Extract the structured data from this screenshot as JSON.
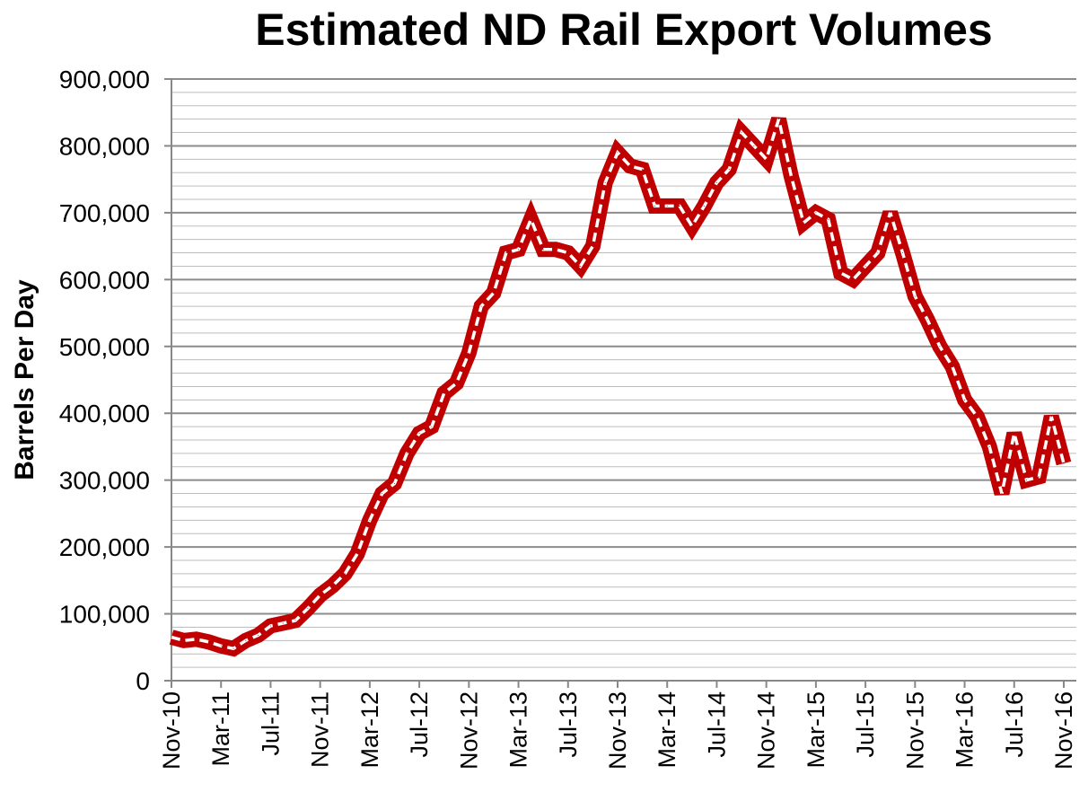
{
  "chart_data": {
    "type": "line",
    "title": "Estimated ND Rail Export Volumes",
    "xlabel": "",
    "ylabel": "Barrels Per Day",
    "ylim": [
      0,
      900000
    ],
    "y_ticks": [
      0,
      100000,
      200000,
      300000,
      400000,
      500000,
      600000,
      700000,
      800000,
      900000
    ],
    "y_tick_labels": [
      "0",
      "100,000",
      "200,000",
      "300,000",
      "400,000",
      "500,000",
      "600,000",
      "700,000",
      "800,000",
      "900,000"
    ],
    "x_tick_labels": [
      "Nov-10",
      "Mar-11",
      "Jul-11",
      "Nov-11",
      "Mar-12",
      "Jul-12",
      "Nov-12",
      "Mar-13",
      "Jul-13",
      "Nov-13",
      "Mar-14",
      "Jul-14",
      "Nov-14",
      "Mar-15",
      "Jul-15",
      "Nov-15",
      "Mar-16",
      "Jul-16",
      "Nov-16"
    ],
    "grid": true,
    "line_color": "#c00000",
    "series": [
      {
        "x": [
          "Nov-10",
          "Dec-10",
          "Jan-11",
          "Feb-11",
          "Mar-11",
          "Apr-11",
          "May-11",
          "Jun-11",
          "Jul-11",
          "Aug-11",
          "Sep-11",
          "Oct-11",
          "Nov-11",
          "Dec-11",
          "Jan-12",
          "Feb-12",
          "Mar-12",
          "Apr-12",
          "May-12",
          "Jun-12",
          "Jul-12",
          "Aug-12",
          "Sep-12",
          "Oct-12",
          "Nov-12",
          "Dec-12",
          "Jan-13",
          "Feb-13",
          "Mar-13",
          "Apr-13",
          "May-13",
          "Jun-13",
          "Jul-13",
          "Aug-13",
          "Sep-13",
          "Oct-13",
          "Nov-13",
          "Dec-13",
          "Jan-14",
          "Feb-14",
          "Mar-14",
          "Apr-14",
          "May-14",
          "Jun-14",
          "Jul-14",
          "Aug-14",
          "Sep-14",
          "Oct-14",
          "Nov-14",
          "Dec-14",
          "Jan-15",
          "Feb-15",
          "Mar-15",
          "Apr-15",
          "May-15",
          "Jun-15",
          "Jul-15",
          "Aug-15",
          "Sep-15",
          "Oct-15",
          "Nov-15",
          "Dec-15",
          "Jan-16",
          "Feb-16",
          "Mar-16",
          "Apr-16",
          "May-16",
          "Jun-16",
          "Jul-16",
          "Aug-16",
          "Sep-16",
          "Oct-16",
          "Nov-16"
        ],
        "values": [
          65000,
          60000,
          62000,
          58000,
          52000,
          48000,
          60000,
          68000,
          82000,
          86000,
          90000,
          108000,
          128000,
          142000,
          160000,
          190000,
          240000,
          280000,
          295000,
          340000,
          370000,
          380000,
          430000,
          445000,
          490000,
          560000,
          580000,
          640000,
          645000,
          690000,
          645000,
          645000,
          640000,
          620000,
          650000,
          745000,
          790000,
          770000,
          765000,
          710000,
          710000,
          710000,
          680000,
          710000,
          745000,
          765000,
          820000,
          800000,
          780000,
          840000,
          755000,
          685000,
          700000,
          690000,
          610000,
          600000,
          620000,
          640000,
          700000,
          640000,
          575000,
          540000,
          500000,
          470000,
          420000,
          395000,
          350000,
          280000,
          370000,
          300000,
          305000,
          395000,
          325000
        ]
      }
    ]
  }
}
